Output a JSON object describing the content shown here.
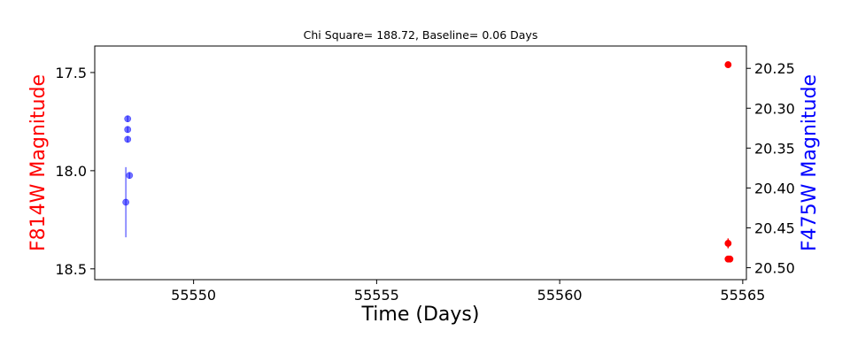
{
  "chart_data": {
    "type": "scatter",
    "title": "Chi Square= 188.72, Baseline= 0.06 Days",
    "xlabel": "Time (Days)",
    "ylabel_left": "F814W Magnitude",
    "ylabel_right": "F475W Magnitude",
    "xlim": [
      55547.3,
      55565.1
    ],
    "ylim_left": [
      18.555,
      17.365
    ],
    "ylim_right": [
      20.515,
      20.222
    ],
    "x_ticks": [
      55550,
      55555,
      55560,
      55565
    ],
    "y_ticks_left": [
      17.5,
      18.0,
      18.5
    ],
    "y_ticks_right": [
      20.25,
      20.3,
      20.35,
      20.4,
      20.45,
      20.5
    ],
    "colors": {
      "left_axis": "#ff0000",
      "right_axis": "#0000ff"
    },
    "series": [
      {
        "axis": "left",
        "color": "#ff0000",
        "alpha": 1.0,
        "points": [
          {
            "x": 55564.6,
            "y": 17.46,
            "err": 0.01
          },
          {
            "x": 55564.6,
            "y": 18.37,
            "err": 0.025
          },
          {
            "x": 55564.6,
            "y": 18.45,
            "err": 0.01
          },
          {
            "x": 55564.65,
            "y": 18.45,
            "err": 0.01
          }
        ]
      },
      {
        "axis": "right",
        "color": "#0000ff",
        "alpha": 0.55,
        "points": [
          {
            "x": 55548.2,
            "y": 20.3133,
            "err": 0.004
          },
          {
            "x": 55548.2,
            "y": 20.3267,
            "err": 0.004
          },
          {
            "x": 55548.2,
            "y": 20.339,
            "err": 0.004
          },
          {
            "x": 55548.25,
            "y": 20.3843,
            "err": 0.004
          },
          {
            "x": 55548.15,
            "y": 20.4179,
            "err": 0.044
          }
        ]
      }
    ]
  }
}
